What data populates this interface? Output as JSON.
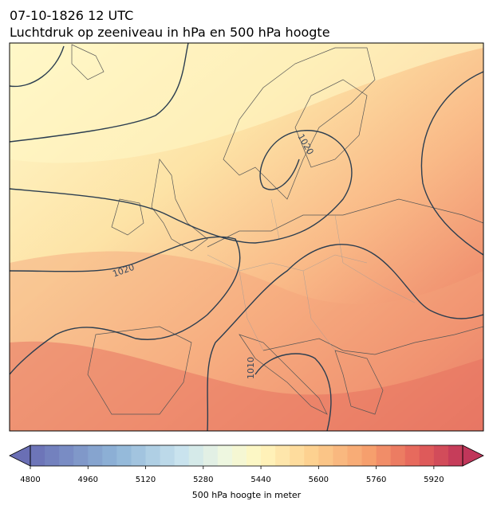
{
  "map": {
    "title": "07-10-1826 12 UTC",
    "subtitle": "Luchtdruk op zeeniveau in hPa en 500 hPa hoogte",
    "contour_labels": [
      "1020",
      "1020",
      "1010"
    ],
    "colorbar": {
      "label": "500 hPa hoogte in meter",
      "lim": [
        4800,
        6000
      ],
      "step": 40,
      "ticks": [
        4800,
        4960,
        5120,
        5280,
        5440,
        5600,
        5760,
        5920
      ]
    }
  }
}
